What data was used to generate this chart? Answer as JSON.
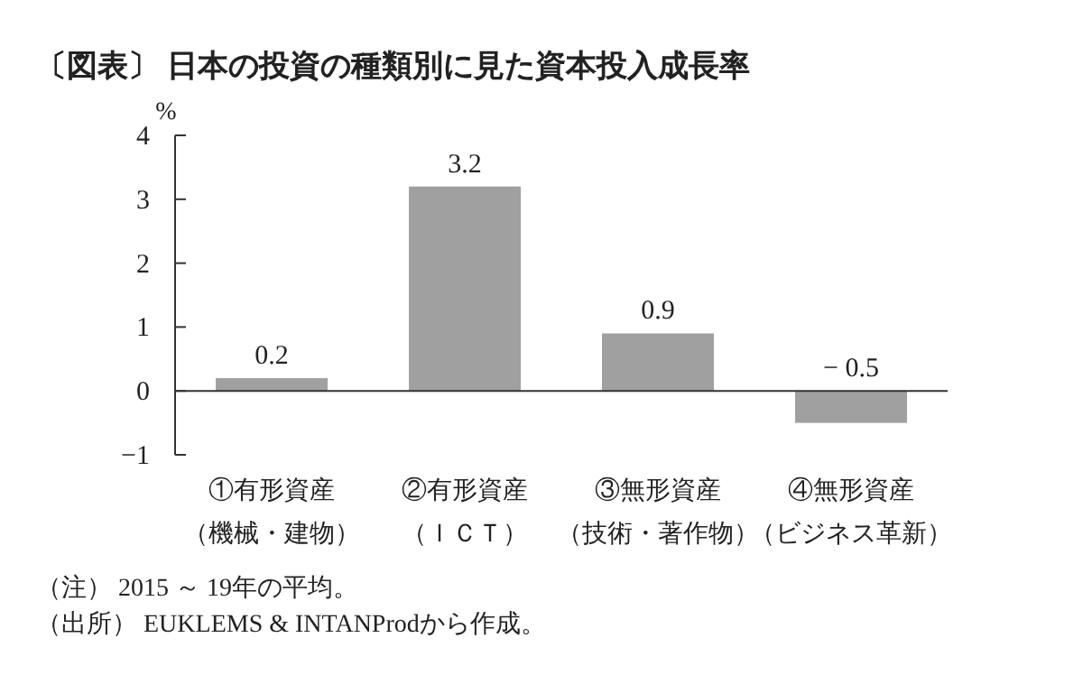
{
  "chart_data": {
    "type": "bar",
    "title": "〔図表〕 日本の投資の種類別に見た資本投入成長率",
    "ylabel": "%",
    "categories": [
      "①有形資産（機械・建物）",
      "②有形資産（ＩＣＴ）",
      "③無形資産（技術・著作物）",
      "④無形資産（ビジネス革新）"
    ],
    "values": [
      0.2,
      3.2,
      0.9,
      -0.5
    ],
    "color": "#a0a0a0",
    "ylim": [
      -1,
      4
    ],
    "yticks": [
      {
        "value": -1,
        "label": "−1"
      },
      0,
      1,
      2,
      3,
      4
    ],
    "data_labels": true,
    "annotations": [
      "（注） 2015 ～ 19年の平均。",
      "（出所） EUKLEMS & INTANProdから作成。"
    ]
  }
}
